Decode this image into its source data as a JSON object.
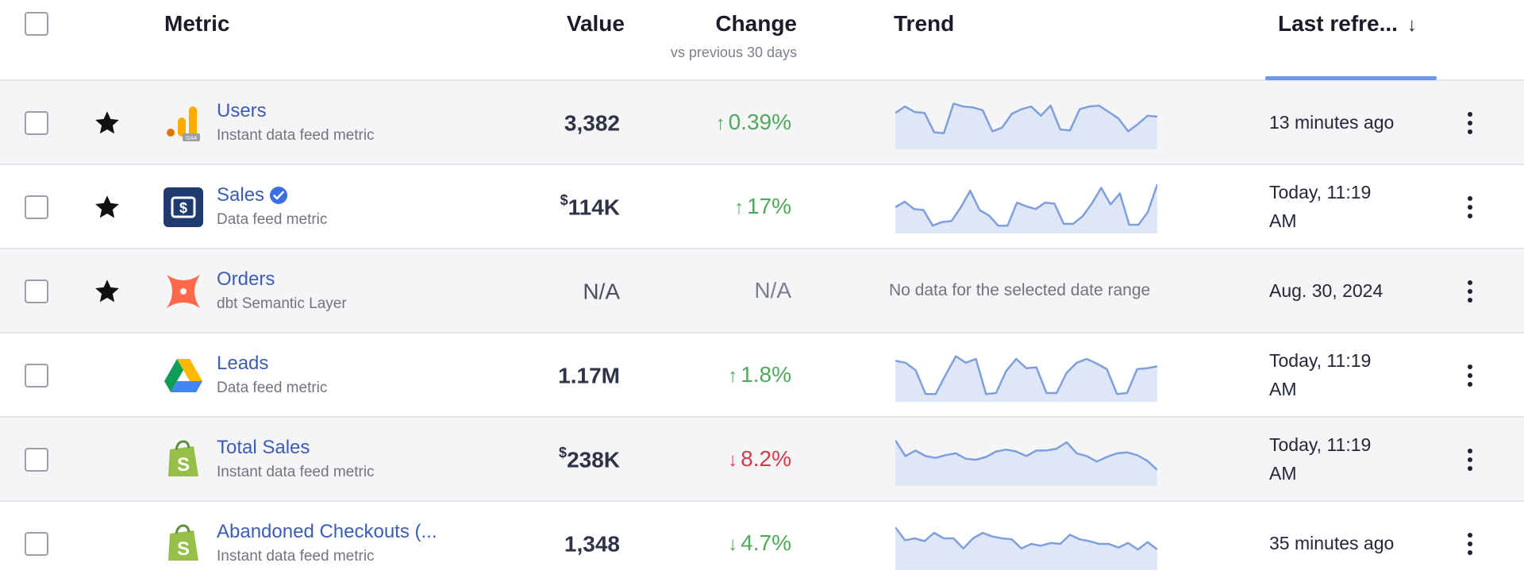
{
  "header": {
    "metric": "Metric",
    "value": "Value",
    "change": "Change",
    "change_sub": "vs previous 30 days",
    "trend": "Trend",
    "last_refreshed": "Last refre...",
    "sort_icon": "arrow-down-icon"
  },
  "colors": {
    "link": "#3b5db3",
    "positive": "#4fa95c",
    "negative": "#d33a48",
    "sparkline_stroke": "#7f9fdc",
    "sparkline_fill": "#dfe7f7",
    "sort_accent": "#6f97e6"
  },
  "rows": [
    {
      "name": "Users",
      "subtitle": "Instant data feed metric",
      "starred": true,
      "icon": "google-analytics-icon",
      "value_prefix": "",
      "value": "3,382",
      "change_arrow": "↑",
      "change": "0.39%",
      "direction": "up",
      "refreshed_line1": "13 minutes ago",
      "refreshed_line2": "",
      "trend": [
        0.72,
        0.86,
        0.74,
        0.72,
        0.3,
        0.28,
        0.92,
        0.86,
        0.84,
        0.78,
        0.32,
        0.4,
        0.7,
        0.8,
        0.86,
        0.66,
        0.88,
        0.36,
        0.34,
        0.8,
        0.86,
        0.88,
        0.74,
        0.6,
        0.32,
        0.48,
        0.66,
        0.64
      ]
    },
    {
      "name": "Sales",
      "subtitle": "Data feed metric",
      "starred": true,
      "icon": "dollar-sign-icon",
      "verified": true,
      "value_prefix": "$",
      "value": "114K",
      "change_arrow": "↑",
      "change": "17%",
      "direction": "up",
      "refreshed_line1": "Today, 11:19",
      "refreshed_line2": "AM",
      "trend": [
        0.5,
        0.62,
        0.46,
        0.44,
        0.1,
        0.18,
        0.2,
        0.5,
        0.86,
        0.44,
        0.32,
        0.1,
        0.1,
        0.6,
        0.52,
        0.46,
        0.6,
        0.58,
        0.14,
        0.14,
        0.3,
        0.58,
        0.92,
        0.56,
        0.8,
        0.12,
        0.12,
        0.4,
        1.0
      ]
    },
    {
      "name": "Orders",
      "subtitle": "dbt Semantic Layer",
      "starred": true,
      "icon": "dbt-icon",
      "value_prefix": "",
      "value": "N/A",
      "change_arrow": "",
      "change": "N/A",
      "direction": "na",
      "refreshed_line1": "Aug. 30, 2024",
      "refreshed_line2": "",
      "no_data": "No data for the selected date range",
      "trend": []
    },
    {
      "name": "Leads",
      "subtitle": "Data feed metric",
      "starred": false,
      "icon": "google-drive-icon",
      "value_prefix": "",
      "value": "1.17M",
      "change_arrow": "↑",
      "change": "1.8%",
      "direction": "up",
      "refreshed_line1": "Today, 11:19",
      "refreshed_line2": "AM",
      "trend": [
        0.82,
        0.78,
        0.62,
        0.1,
        0.1,
        0.52,
        0.92,
        0.78,
        0.86,
        0.1,
        0.12,
        0.6,
        0.86,
        0.66,
        0.68,
        0.12,
        0.12,
        0.56,
        0.78,
        0.86,
        0.76,
        0.64,
        0.1,
        0.12,
        0.64,
        0.66,
        0.7
      ]
    },
    {
      "name": "Total Sales",
      "subtitle": "Instant data feed metric",
      "starred": false,
      "icon": "shopify-icon",
      "value_prefix": "$",
      "value": "238K",
      "change_arrow": "↓",
      "change": "8.2%",
      "direction": "down",
      "refreshed_line1": "Today, 11:19",
      "refreshed_line2": "AM",
      "trend": [
        0.92,
        0.58,
        0.7,
        0.58,
        0.54,
        0.6,
        0.64,
        0.52,
        0.5,
        0.56,
        0.68,
        0.72,
        0.68,
        0.58,
        0.7,
        0.7,
        0.74,
        0.88,
        0.64,
        0.58,
        0.46,
        0.56,
        0.64,
        0.66,
        0.6,
        0.48,
        0.28
      ]
    },
    {
      "name": "Abandoned Checkouts (...",
      "subtitle": "Instant data feed metric",
      "starred": false,
      "icon": "shopify-icon",
      "value_prefix": "",
      "value": "1,348",
      "change_arrow": "↓",
      "change": "4.7%",
      "direction": "down",
      "refreshed_line1": "35 minutes ago",
      "refreshed_line2": "",
      "trend": [
        0.86,
        0.58,
        0.62,
        0.56,
        0.74,
        0.62,
        0.62,
        0.4,
        0.62,
        0.74,
        0.66,
        0.62,
        0.6,
        0.4,
        0.5,
        0.46,
        0.52,
        0.5,
        0.7,
        0.6,
        0.56,
        0.5,
        0.5,
        0.42,
        0.52,
        0.38,
        0.54,
        0.38
      ]
    }
  ]
}
